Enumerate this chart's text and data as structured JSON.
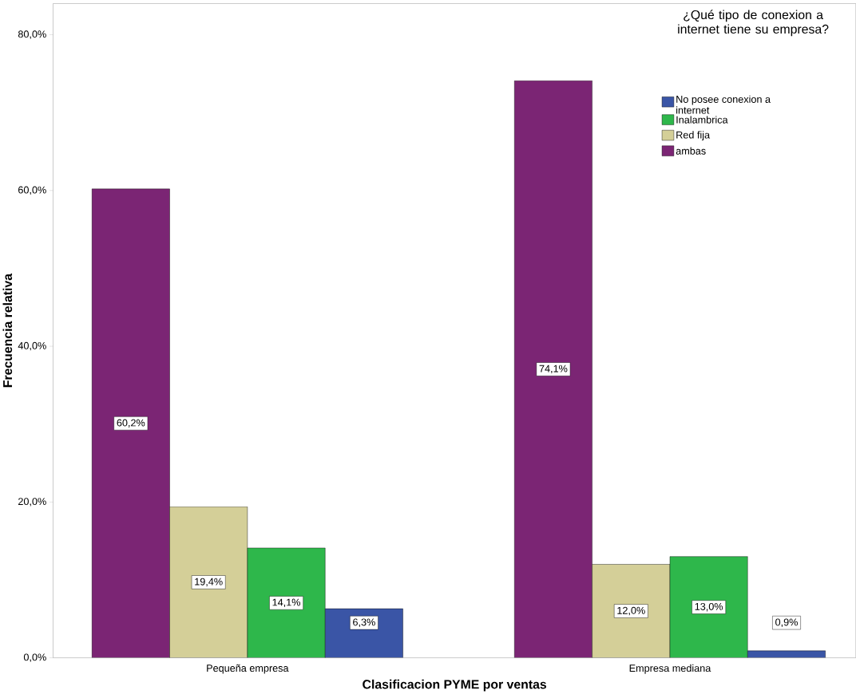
{
  "chart_data": {
    "type": "bar",
    "xlabel": "Clasificacion PYME por ventas",
    "ylabel": "Frecuencia relativa",
    "legend_title": "¿Qué tipo de conexion a internet tiene su empresa?",
    "categories": [
      "Pequeña empresa",
      "Empresa mediana"
    ],
    "series": [
      {
        "name": "ambas",
        "color": "#7b2574",
        "values": [
          60.2,
          74.1
        ],
        "value_labels": [
          "60,2%",
          "74,1%"
        ]
      },
      {
        "name": "Red fija",
        "color": "#d4cf98",
        "values": [
          19.4,
          12.0
        ],
        "value_labels": [
          "19,4%",
          "12,0%"
        ]
      },
      {
        "name": "Inalambrica",
        "color": "#2eb74b",
        "values": [
          14.1,
          13.0
        ],
        "value_labels": [
          "14,1%",
          "13,0%"
        ]
      },
      {
        "name": "No posee conexion a internet",
        "color": "#3a55a6",
        "values": [
          6.3,
          0.9
        ],
        "value_labels": [
          "6,3%",
          "0,9%"
        ]
      }
    ],
    "ylim": [
      0,
      84
    ],
    "yticks": [
      {
        "value": 0,
        "label": "0,0%"
      },
      {
        "value": 20,
        "label": "20,0%"
      },
      {
        "value": 40,
        "label": "40,0%"
      },
      {
        "value": 60,
        "label": "60,0%"
      },
      {
        "value": 80,
        "label": "80,0%"
      }
    ],
    "legend": "top right",
    "grid": false
  }
}
